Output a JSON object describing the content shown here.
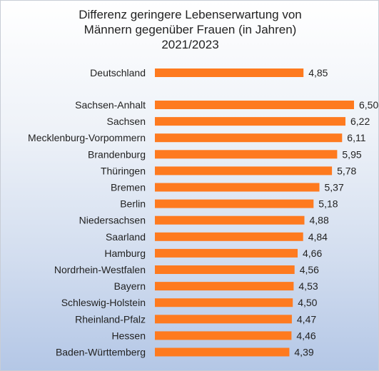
{
  "chart_data": {
    "type": "bar",
    "orientation": "horizontal",
    "title_lines": [
      "Differenz geringere Lebenserwartung von",
      "Männern gegenüber Frauen (in Jahren)",
      "2021/2023"
    ],
    "categories": [
      "Deutschland",
      "Sachsen-Anhalt",
      "Sachsen",
      "Mecklenburg-Vorpommern",
      "Brandenburg",
      "Thüringen",
      "Bremen",
      "Berlin",
      "Niedersachsen",
      "Saarland",
      "Hamburg",
      "Nordrhein-Westfalen",
      "Bayern",
      "Schleswig-Holstein",
      "Rheinland-Pfalz",
      "Hessen",
      "Baden-Württemberg"
    ],
    "values": [
      4.85,
      6.5,
      6.22,
      6.11,
      5.95,
      5.78,
      5.37,
      5.18,
      4.88,
      4.84,
      4.66,
      4.56,
      4.53,
      4.5,
      4.47,
      4.46,
      4.39
    ],
    "value_labels": [
      "4,85",
      "6,50",
      "6,22",
      "6,11",
      "5,95",
      "5,78",
      "5,37",
      "5,18",
      "4,88",
      "4,84",
      "4,66",
      "4,56",
      "4,53",
      "4,50",
      "4,47",
      "4,46",
      "4,39"
    ],
    "bar_color": "#fe7a1f",
    "xlim": [
      0,
      6.5
    ],
    "grid": false,
    "legend": false
  }
}
